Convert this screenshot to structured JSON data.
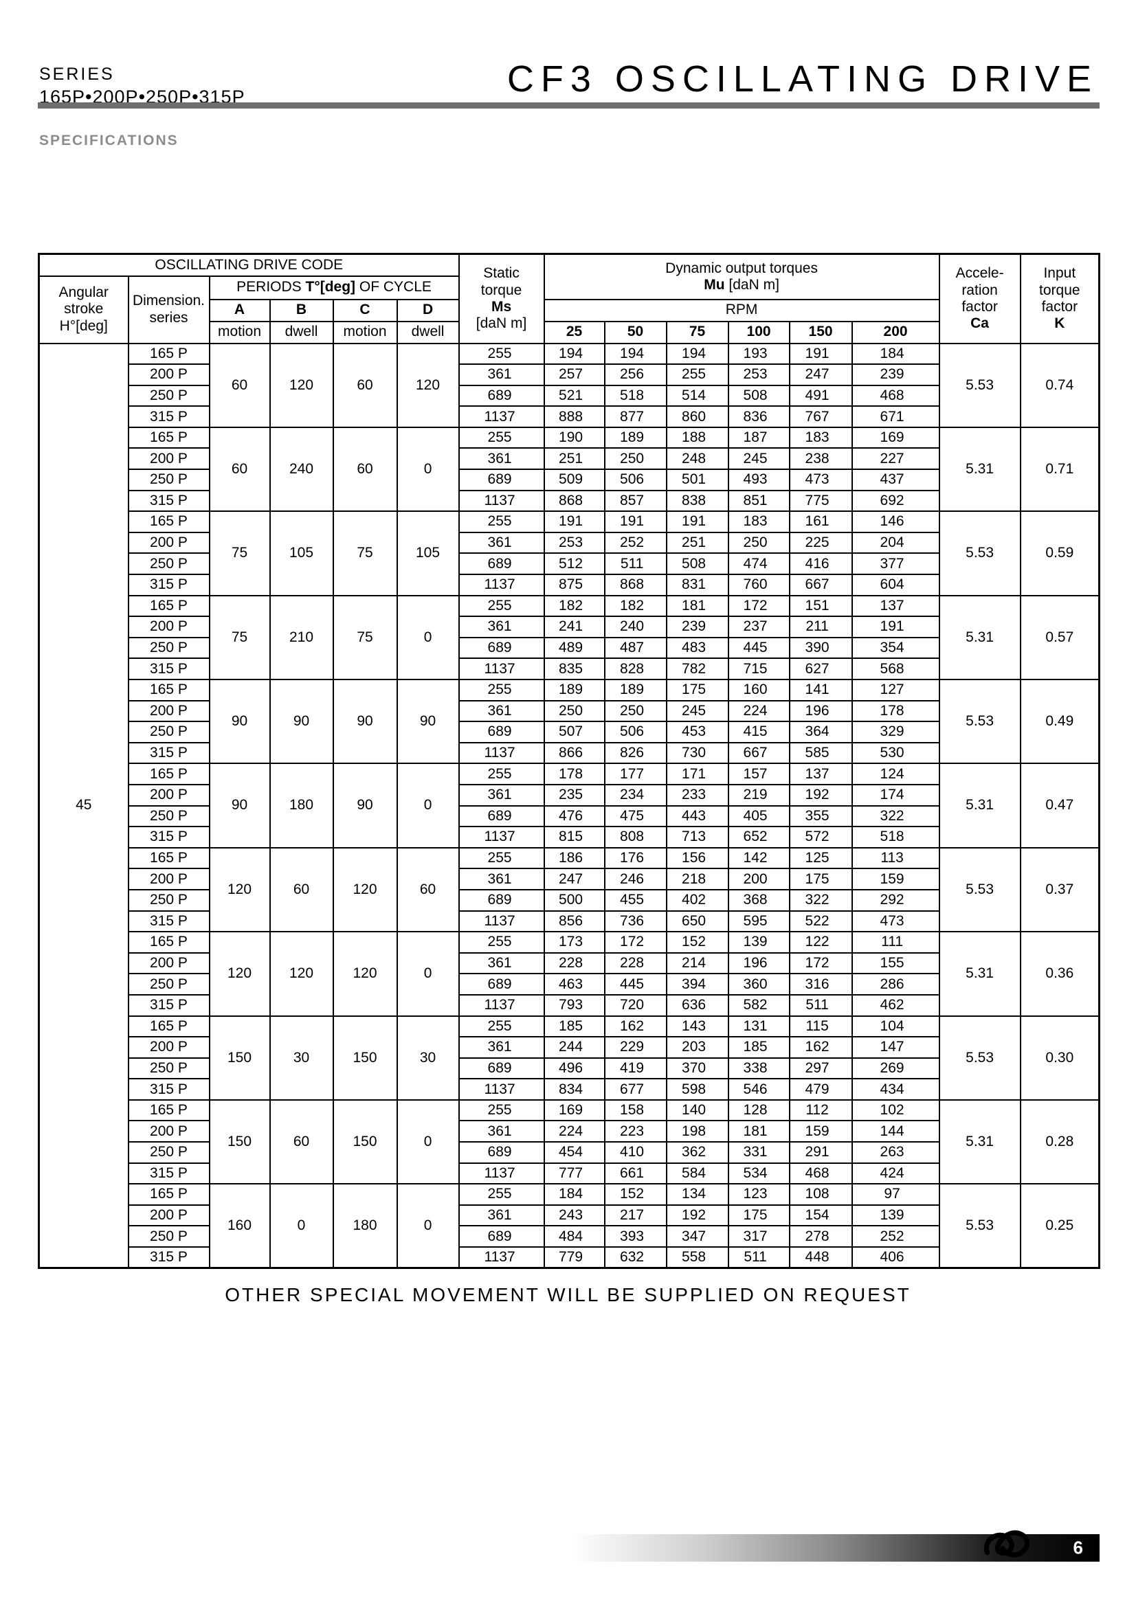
{
  "header": {
    "series_label": "SERIES",
    "series_values": "165P•200P•250P•315P",
    "title": "CF3 OSCILLATING DRIVE"
  },
  "section_title": "SPECIFICATIONS",
  "colors": {
    "rule_gray": "#6e6e6e",
    "heading_gray": "#8c8c8c",
    "text_black": "#000000"
  },
  "table": {
    "head": {
      "code": "OSCILLATING DRIVE CODE",
      "angular_stroke_lines": [
        "Angular",
        "stroke",
        "H°[deg]"
      ],
      "dimension_series_lines": [
        "Dimension.",
        "series"
      ],
      "periods_prefix": "PERIODS ",
      "periods_bold": "T°[deg]",
      "periods_suffix": " OF CYCLE",
      "period_letters": [
        "A",
        "B",
        "C",
        "D"
      ],
      "period_types": [
        "motion",
        "dwell",
        "motion",
        "dwell"
      ],
      "static_lines": [
        "Static",
        "torque",
        "Ms",
        "[daN m]"
      ],
      "dynamic_line1": "Dynamic output torques",
      "dynamic_mu": "Mu",
      "dynamic_unit": " [daN m]",
      "rpm_label": "RPM",
      "rpm_values": [
        "25",
        "50",
        "75",
        "100",
        "150",
        "200"
      ],
      "acceleration_lines": [
        "Accele-",
        "ration",
        "factor",
        "Ca"
      ],
      "input_lines": [
        "Input",
        "torque",
        "factor",
        "K"
      ]
    },
    "angular_stroke_value": "45",
    "blocks": [
      {
        "periods": {
          "A": "60",
          "B": "120",
          "C": "60",
          "D": "120"
        },
        "ca": "5.53",
        "k": "0.74",
        "rows": [
          {
            "series": "165 P",
            "ms": "255",
            "torques": [
              "194",
              "194",
              "194",
              "193",
              "191",
              "184"
            ]
          },
          {
            "series": "200 P",
            "ms": "361",
            "torques": [
              "257",
              "256",
              "255",
              "253",
              "247",
              "239"
            ]
          },
          {
            "series": "250 P",
            "ms": "689",
            "torques": [
              "521",
              "518",
              "514",
              "508",
              "491",
              "468"
            ]
          },
          {
            "series": "315 P",
            "ms": "1137",
            "torques": [
              "888",
              "877",
              "860",
              "836",
              "767",
              "671"
            ]
          }
        ]
      },
      {
        "periods": {
          "A": "60",
          "B": "240",
          "C": "60",
          "D": "0"
        },
        "ca": "5.31",
        "k": "0.71",
        "rows": [
          {
            "series": "165 P",
            "ms": "255",
            "torques": [
              "190",
              "189",
              "188",
              "187",
              "183",
              "169"
            ]
          },
          {
            "series": "200 P",
            "ms": "361",
            "torques": [
              "251",
              "250",
              "248",
              "245",
              "238",
              "227"
            ]
          },
          {
            "series": "250 P",
            "ms": "689",
            "torques": [
              "509",
              "506",
              "501",
              "493",
              "473",
              "437"
            ]
          },
          {
            "series": "315 P",
            "ms": "1137",
            "torques": [
              "868",
              "857",
              "838",
              "851",
              "775",
              "692"
            ]
          }
        ]
      },
      {
        "periods": {
          "A": "75",
          "B": "105",
          "C": "75",
          "D": "105"
        },
        "ca": "5.53",
        "k": "0.59",
        "rows": [
          {
            "series": "165 P",
            "ms": "255",
            "torques": [
              "191",
              "191",
              "191",
              "183",
              "161",
              "146"
            ]
          },
          {
            "series": "200 P",
            "ms": "361",
            "torques": [
              "253",
              "252",
              "251",
              "250",
              "225",
              "204"
            ]
          },
          {
            "series": "250 P",
            "ms": "689",
            "torques": [
              "512",
              "511",
              "508",
              "474",
              "416",
              "377"
            ]
          },
          {
            "series": "315 P",
            "ms": "1137",
            "torques": [
              "875",
              "868",
              "831",
              "760",
              "667",
              "604"
            ]
          }
        ]
      },
      {
        "periods": {
          "A": "75",
          "B": "210",
          "C": "75",
          "D": "0"
        },
        "ca": "5.31",
        "k": "0.57",
        "rows": [
          {
            "series": "165 P",
            "ms": "255",
            "torques": [
              "182",
              "182",
              "181",
              "172",
              "151",
              "137"
            ]
          },
          {
            "series": "200 P",
            "ms": "361",
            "torques": [
              "241",
              "240",
              "239",
              "237",
              "211",
              "191"
            ]
          },
          {
            "series": "250 P",
            "ms": "689",
            "torques": [
              "489",
              "487",
              "483",
              "445",
              "390",
              "354"
            ]
          },
          {
            "series": "315 P",
            "ms": "1137",
            "torques": [
              "835",
              "828",
              "782",
              "715",
              "627",
              "568"
            ]
          }
        ]
      },
      {
        "periods": {
          "A": "90",
          "B": "90",
          "C": "90",
          "D": "90"
        },
        "ca": "5.53",
        "k": "0.49",
        "rows": [
          {
            "series": "165 P",
            "ms": "255",
            "torques": [
              "189",
              "189",
              "175",
              "160",
              "141",
              "127"
            ]
          },
          {
            "series": "200 P",
            "ms": "361",
            "torques": [
              "250",
              "250",
              "245",
              "224",
              "196",
              "178"
            ]
          },
          {
            "series": "250 P",
            "ms": "689",
            "torques": [
              "507",
              "506",
              "453",
              "415",
              "364",
              "329"
            ]
          },
          {
            "series": "315 P",
            "ms": "1137",
            "torques": [
              "866",
              "826",
              "730",
              "667",
              "585",
              "530"
            ]
          }
        ]
      },
      {
        "periods": {
          "A": "90",
          "B": "180",
          "C": "90",
          "D": "0"
        },
        "ca": "5.31",
        "k": "0.47",
        "rows": [
          {
            "series": "165 P",
            "ms": "255",
            "torques": [
              "178",
              "177",
              "171",
              "157",
              "137",
              "124"
            ]
          },
          {
            "series": "200 P",
            "ms": "361",
            "torques": [
              "235",
              "234",
              "233",
              "219",
              "192",
              "174"
            ]
          },
          {
            "series": "250 P",
            "ms": "689",
            "torques": [
              "476",
              "475",
              "443",
              "405",
              "355",
              "322"
            ]
          },
          {
            "series": "315 P",
            "ms": "1137",
            "torques": [
              "815",
              "808",
              "713",
              "652",
              "572",
              "518"
            ]
          }
        ]
      },
      {
        "periods": {
          "A": "120",
          "B": "60",
          "C": "120",
          "D": "60"
        },
        "ca": "5.53",
        "k": "0.37",
        "rows": [
          {
            "series": "165 P",
            "ms": "255",
            "torques": [
              "186",
              "176",
              "156",
              "142",
              "125",
              "113"
            ]
          },
          {
            "series": "200 P",
            "ms": "361",
            "torques": [
              "247",
              "246",
              "218",
              "200",
              "175",
              "159"
            ]
          },
          {
            "series": "250 P",
            "ms": "689",
            "torques": [
              "500",
              "455",
              "402",
              "368",
              "322",
              "292"
            ]
          },
          {
            "series": "315 P",
            "ms": "1137",
            "torques": [
              "856",
              "736",
              "650",
              "595",
              "522",
              "473"
            ]
          }
        ]
      },
      {
        "periods": {
          "A": "120",
          "B": "120",
          "C": "120",
          "D": "0"
        },
        "ca": "5.31",
        "k": "0.36",
        "rows": [
          {
            "series": "165 P",
            "ms": "255",
            "torques": [
              "173",
              "172",
              "152",
              "139",
              "122",
              "111"
            ]
          },
          {
            "series": "200 P",
            "ms": "361",
            "torques": [
              "228",
              "228",
              "214",
              "196",
              "172",
              "155"
            ]
          },
          {
            "series": "250 P",
            "ms": "689",
            "torques": [
              "463",
              "445",
              "394",
              "360",
              "316",
              "286"
            ]
          },
          {
            "series": "315 P",
            "ms": "1137",
            "torques": [
              "793",
              "720",
              "636",
              "582",
              "511",
              "462"
            ]
          }
        ]
      },
      {
        "periods": {
          "A": "150",
          "B": "30",
          "C": "150",
          "D": "30"
        },
        "ca": "5.53",
        "k": "0.30",
        "rows": [
          {
            "series": "165 P",
            "ms": "255",
            "torques": [
              "185",
              "162",
              "143",
              "131",
              "115",
              "104"
            ]
          },
          {
            "series": "200 P",
            "ms": "361",
            "torques": [
              "244",
              "229",
              "203",
              "185",
              "162",
              "147"
            ]
          },
          {
            "series": "250 P",
            "ms": "689",
            "torques": [
              "496",
              "419",
              "370",
              "338",
              "297",
              "269"
            ]
          },
          {
            "series": "315 P",
            "ms": "1137",
            "torques": [
              "834",
              "677",
              "598",
              "546",
              "479",
              "434"
            ]
          }
        ]
      },
      {
        "periods": {
          "A": "150",
          "B": "60",
          "C": "150",
          "D": "0"
        },
        "ca": "5.31",
        "k": "0.28",
        "rows": [
          {
            "series": "165 P",
            "ms": "255",
            "torques": [
              "169",
              "158",
              "140",
              "128",
              "112",
              "102"
            ]
          },
          {
            "series": "200 P",
            "ms": "361",
            "torques": [
              "224",
              "223",
              "198",
              "181",
              "159",
              "144"
            ]
          },
          {
            "series": "250 P",
            "ms": "689",
            "torques": [
              "454",
              "410",
              "362",
              "331",
              "291",
              "263"
            ]
          },
          {
            "series": "315 P",
            "ms": "1137",
            "torques": [
              "777",
              "661",
              "584",
              "534",
              "468",
              "424"
            ]
          }
        ]
      },
      {
        "periods": {
          "A": "160",
          "B": "0",
          "C": "180",
          "D": "0"
        },
        "ca": "5.53",
        "k": "0.25",
        "rows": [
          {
            "series": "165 P",
            "ms": "255",
            "torques": [
              "184",
              "152",
              "134",
              "123",
              "108",
              "97"
            ]
          },
          {
            "series": "200 P",
            "ms": "361",
            "torques": [
              "243",
              "217",
              "192",
              "175",
              "154",
              "139"
            ]
          },
          {
            "series": "250 P",
            "ms": "689",
            "torques": [
              "484",
              "393",
              "347",
              "317",
              "278",
              "252"
            ]
          },
          {
            "series": "315 P",
            "ms": "1137",
            "torques": [
              "779",
              "632",
              "558",
              "511",
              "448",
              "406"
            ]
          }
        ]
      }
    ]
  },
  "footer_note": "OTHER SPECIAL MOVEMENT WILL BE SUPPLIED ON REQUEST",
  "footer": {
    "page_number": "6"
  }
}
